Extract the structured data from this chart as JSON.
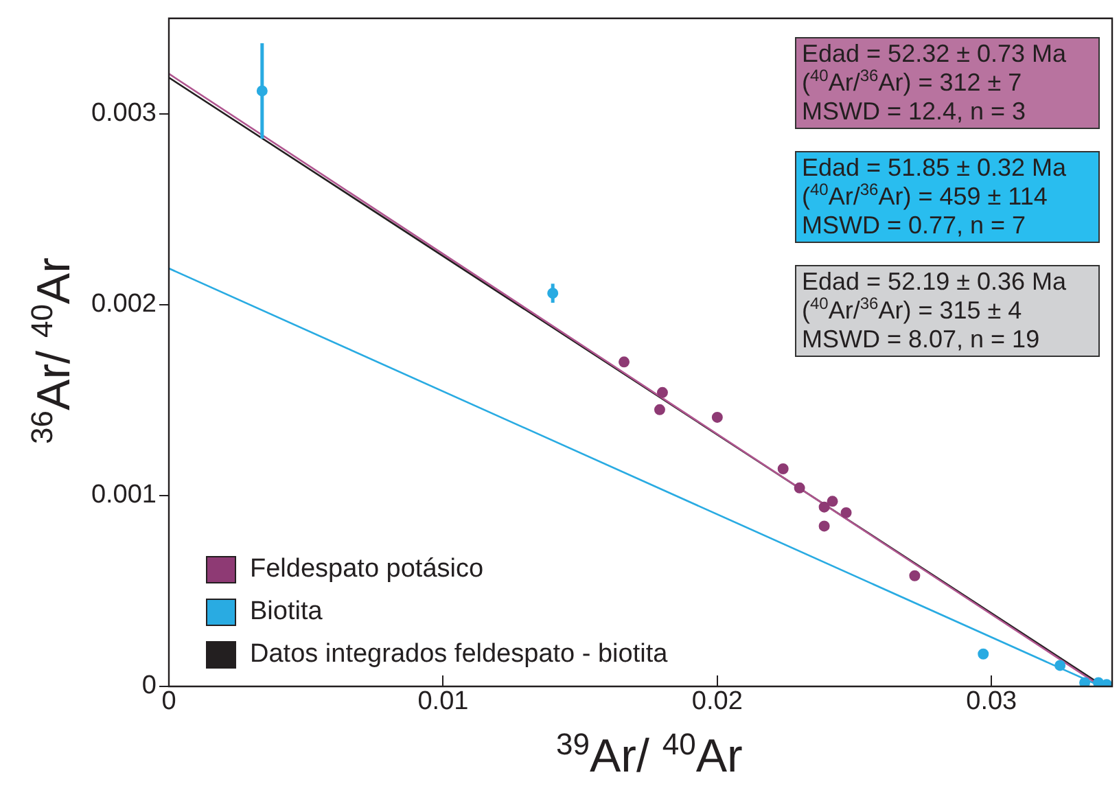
{
  "chart_data": {
    "type": "scatter",
    "xlabel": "$^{39}$Ar/ $^{40}$Ar",
    "ylabel": "$^{36}$Ar/ $^{40}$Ar",
    "xlim": [
      0,
      0.0344
    ],
    "ylim": [
      0,
      0.0035
    ],
    "xticks": [
      0,
      0.01,
      0.02,
      0.03
    ],
    "yticks": [
      0,
      0.001,
      0.002,
      0.003
    ],
    "grid": false,
    "legend": "bottom left",
    "marker": "circle",
    "series": [
      {
        "name": "Feldespato potásico",
        "color": "#8e3a74",
        "x": [
          0.0166,
          0.018,
          0.0179,
          0.02,
          0.0224,
          0.023,
          0.0242,
          0.0239,
          0.0239,
          0.0247,
          0.0272
        ],
        "values": [
          0.0017,
          0.00154,
          0.00145,
          0.00141,
          0.00114,
          0.00104,
          0.00097,
          0.00094,
          0.00084,
          0.00091,
          0.00058
        ]
      },
      {
        "name": "Biotita",
        "color": "#29abe2",
        "x": [
          0.0034,
          0.014,
          0.0297,
          0.0325,
          0.0334,
          0.0339,
          0.0342
        ],
        "values": [
          0.00312,
          0.00206,
          0.00017,
          0.00011,
          2e-05,
          2e-05,
          1e-05
        ],
        "errors": [
          0.00025,
          5e-05,
          null,
          null,
          null,
          null,
          null
        ]
      },
      {
        "type": "line",
        "marker": "none",
        "color": "#b0558f",
        "x": [
          0,
          0.034
        ],
        "values": [
          0.00321,
          0
        ]
      },
      {
        "type": "line",
        "marker": "none",
        "color": "#29abe2",
        "x": [
          0,
          0.034
        ],
        "values": [
          0.00219,
          0
        ]
      },
      {
        "name": "Datos integrados feldespato - biotita",
        "type": "line",
        "marker": "none",
        "color": "#231f20",
        "x": [
          0,
          0.0341
        ],
        "values": [
          0.00319,
          0
        ]
      }
    ],
    "annotations": [
      "Edad = 52.32 ± 0.73 Ma\n($^{40}$Ar/$^{36}$Ar) = 312 ± 7\nMSWD = 12.4, n = 3",
      "Edad = 51.85 ± 0.32 Ma\n($^{40}$Ar/$^{36}$Ar) = 459 ± 114\nMSWD = 0.77, n = 7",
      "Edad = 52.19 ± 0.36 Ma\n($^{40}$Ar/$^{36}$Ar) = 315 ± 4\nMSWD = 8.07, n = 19"
    ]
  }
}
